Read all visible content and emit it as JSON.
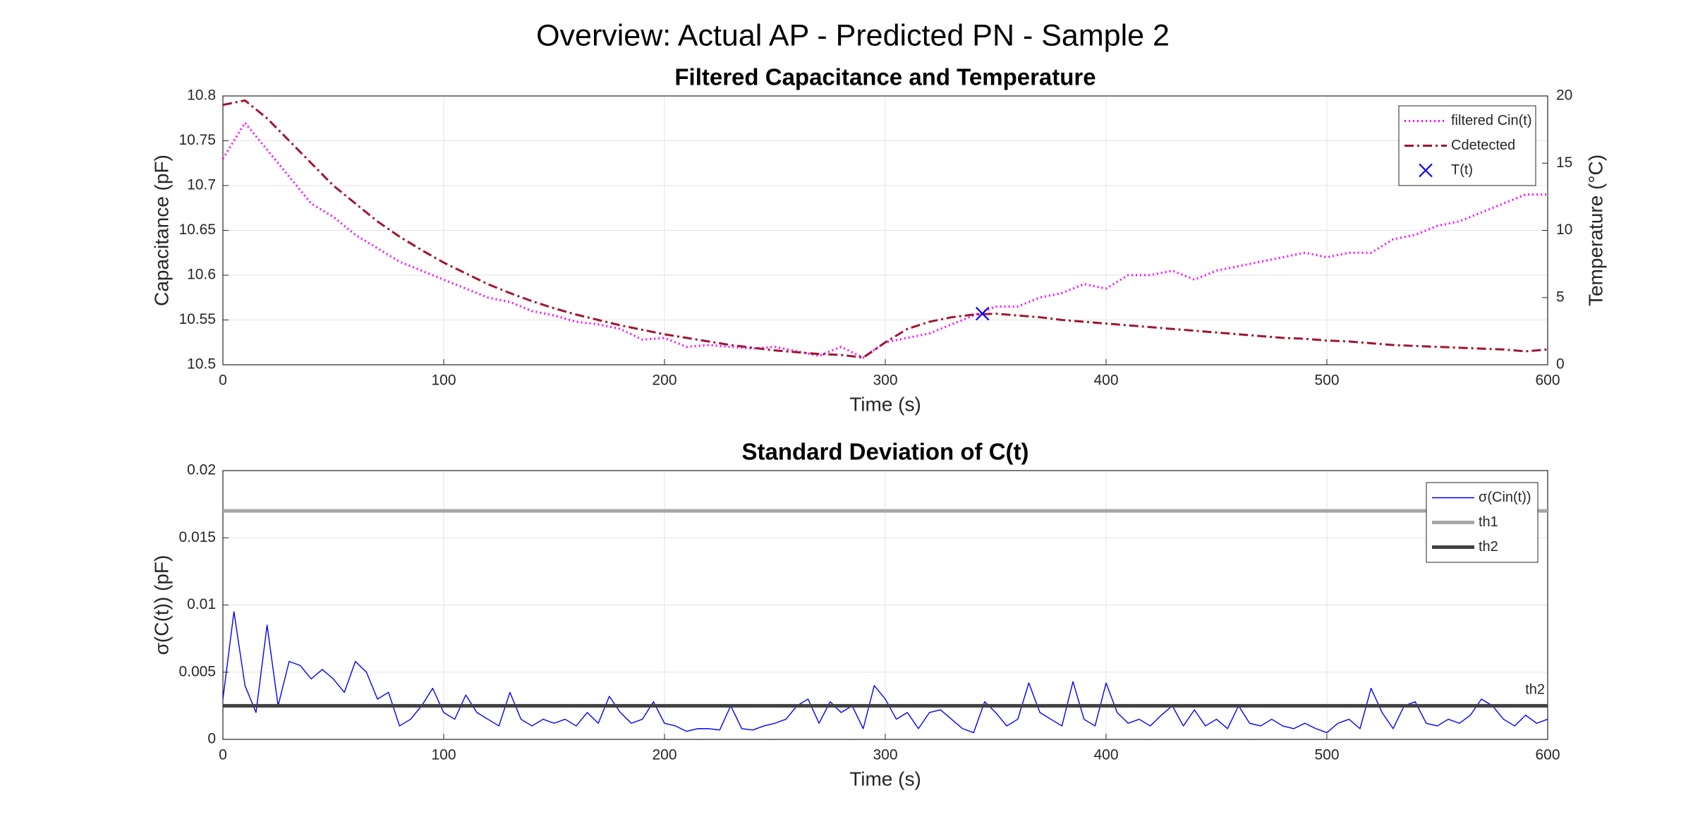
{
  "title": "Overview: Actual AP - Predicted PN - Sample 2",
  "chart_data": [
    {
      "type": "line",
      "title": "Filtered Capacitance and Temperature",
      "xlabel": "Time (s)",
      "ylabel": "Capacitance (pF)",
      "y2label": "Temperature (°C)",
      "xlim": [
        0,
        600
      ],
      "xticks": [
        0,
        100,
        200,
        300,
        400,
        500,
        600
      ],
      "ylim": [
        10.5,
        10.8
      ],
      "yticks": [
        10.5,
        10.55,
        10.6,
        10.65,
        10.7,
        10.75,
        10.8
      ],
      "y2lim": [
        0,
        20
      ],
      "y2ticks": [
        0,
        5,
        10,
        15,
        20
      ],
      "grid": true,
      "legend": "northeast",
      "x": [
        0,
        10,
        20,
        30,
        40,
        50,
        60,
        70,
        80,
        90,
        100,
        110,
        120,
        130,
        140,
        150,
        160,
        170,
        180,
        190,
        200,
        210,
        220,
        230,
        240,
        250,
        260,
        270,
        280,
        290,
        300,
        310,
        320,
        330,
        340,
        350,
        360,
        370,
        380,
        390,
        400,
        410,
        420,
        430,
        440,
        450,
        460,
        470,
        480,
        490,
        500,
        510,
        520,
        530,
        540,
        550,
        560,
        570,
        580,
        590,
        600
      ],
      "series": [
        {
          "name": "filtered Cin(t)",
          "color": "#ff00ff",
          "style": "dotted",
          "values": [
            10.73,
            10.77,
            10.74,
            10.71,
            10.68,
            10.665,
            10.645,
            10.63,
            10.615,
            10.605,
            10.595,
            10.585,
            10.575,
            10.57,
            10.56,
            10.555,
            10.548,
            10.545,
            10.54,
            10.528,
            10.53,
            10.52,
            10.522,
            10.52,
            10.518,
            10.52,
            10.515,
            10.51,
            10.52,
            10.508,
            10.525,
            10.53,
            10.535,
            10.545,
            10.555,
            10.565,
            10.565,
            10.575,
            10.58,
            10.59,
            10.585,
            10.6,
            10.6,
            10.605,
            10.595,
            10.605,
            10.61,
            10.615,
            10.62,
            10.625,
            10.62,
            10.625,
            10.625,
            10.64,
            10.645,
            10.655,
            10.66,
            10.67,
            10.68,
            10.69,
            10.69
          ]
        },
        {
          "name": "Cdetected",
          "color": "#a2142f",
          "style": "dash-dot",
          "values": [
            10.79,
            10.795,
            10.775,
            10.75,
            10.725,
            10.7,
            10.68,
            10.66,
            10.643,
            10.628,
            10.614,
            10.602,
            10.59,
            10.58,
            10.571,
            10.563,
            10.556,
            10.55,
            10.544,
            10.539,
            10.534,
            10.53,
            10.526,
            10.522,
            10.519,
            10.516,
            10.514,
            10.512,
            10.511,
            10.508,
            10.525,
            10.54,
            10.548,
            10.553,
            10.556,
            10.557,
            10.555,
            10.553,
            10.55,
            10.548,
            10.546,
            10.544,
            10.542,
            10.54,
            10.538,
            10.536,
            10.534,
            10.532,
            10.53,
            10.529,
            10.527,
            10.526,
            10.524,
            10.522,
            10.521,
            10.52,
            10.519,
            10.518,
            10.517,
            10.515,
            10.517
          ]
        },
        {
          "name": "T(t)",
          "color": "#0000ff",
          "style": "none",
          "marker": "x",
          "axis": "y2",
          "x": [
            344
          ],
          "values": [
            3.8
          ]
        }
      ]
    },
    {
      "type": "line",
      "title": "Standard Deviation of C(t)",
      "xlabel": "Time (s)",
      "ylabel": "σ(C(t)) (pF)",
      "xlim": [
        0,
        600
      ],
      "xticks": [
        0,
        100,
        200,
        300,
        400,
        500,
        600
      ],
      "ylim": [
        0,
        0.02
      ],
      "yticks": [
        0,
        0.005,
        0.01,
        0.015,
        0.02
      ],
      "grid": true,
      "legend": "northeast",
      "annotations": [
        "th2"
      ],
      "x": [
        0,
        5,
        10,
        15,
        20,
        25,
        30,
        35,
        40,
        45,
        50,
        55,
        60,
        65,
        70,
        75,
        80,
        85,
        90,
        95,
        100,
        105,
        110,
        115,
        120,
        125,
        130,
        135,
        140,
        145,
        150,
        155,
        160,
        165,
        170,
        175,
        180,
        185,
        190,
        195,
        200,
        205,
        210,
        215,
        220,
        225,
        230,
        235,
        240,
        245,
        250,
        255,
        260,
        265,
        270,
        275,
        280,
        285,
        290,
        295,
        300,
        305,
        310,
        315,
        320,
        325,
        330,
        335,
        340,
        345,
        350,
        355,
        360,
        365,
        370,
        375,
        380,
        385,
        390,
        395,
        400,
        405,
        410,
        415,
        420,
        425,
        430,
        435,
        440,
        445,
        450,
        455,
        460,
        465,
        470,
        475,
        480,
        485,
        490,
        495,
        500,
        505,
        510,
        515,
        520,
        525,
        530,
        535,
        540,
        545,
        550,
        555,
        560,
        565,
        570,
        575,
        580,
        585,
        590,
        595,
        600
      ],
      "series": [
        {
          "name": "σ(Cin(t))",
          "color": "#0000ff",
          "style": "solid",
          "values": [
            0.003,
            0.0095,
            0.004,
            0.002,
            0.0085,
            0.0025,
            0.0058,
            0.0055,
            0.0045,
            0.0052,
            0.0045,
            0.0035,
            0.0058,
            0.005,
            0.003,
            0.0035,
            0.001,
            0.0015,
            0.0025,
            0.0038,
            0.002,
            0.0015,
            0.0033,
            0.002,
            0.0015,
            0.001,
            0.0035,
            0.0015,
            0.001,
            0.0015,
            0.0012,
            0.0015,
            0.001,
            0.002,
            0.0012,
            0.0032,
            0.002,
            0.0012,
            0.0015,
            0.0028,
            0.0012,
            0.001,
            0.0006,
            0.0008,
            0.0008,
            0.0007,
            0.0025,
            0.0008,
            0.0007,
            0.001,
            0.0012,
            0.0015,
            0.0025,
            0.003,
            0.0012,
            0.0028,
            0.002,
            0.0025,
            0.0008,
            0.004,
            0.003,
            0.0015,
            0.002,
            0.0008,
            0.002,
            0.0022,
            0.0015,
            0.0008,
            0.0005,
            0.0028,
            0.002,
            0.001,
            0.0015,
            0.0042,
            0.002,
            0.0015,
            0.001,
            0.0043,
            0.0015,
            0.001,
            0.0042,
            0.002,
            0.0012,
            0.0015,
            0.001,
            0.0018,
            0.0025,
            0.001,
            0.0022,
            0.001,
            0.0015,
            0.0008,
            0.0025,
            0.0012,
            0.001,
            0.0015,
            0.001,
            0.0008,
            0.0012,
            0.0008,
            0.0005,
            0.0012,
            0.0015,
            0.0008,
            0.0038,
            0.002,
            0.0008,
            0.0025,
            0.0028,
            0.0012,
            0.001,
            0.0015,
            0.0012,
            0.0018,
            0.003,
            0.0025,
            0.0015,
            0.001,
            0.0018,
            0.0012,
            0.0015
          ]
        },
        {
          "name": "th1",
          "color": "#a6a6a6",
          "style": "thick",
          "x": [
            0,
            600
          ],
          "values": [
            0.017,
            0.017
          ]
        },
        {
          "name": "th2",
          "color": "#404040",
          "style": "thick",
          "x": [
            0,
            600
          ],
          "values": [
            0.0025,
            0.0025
          ]
        }
      ]
    }
  ]
}
